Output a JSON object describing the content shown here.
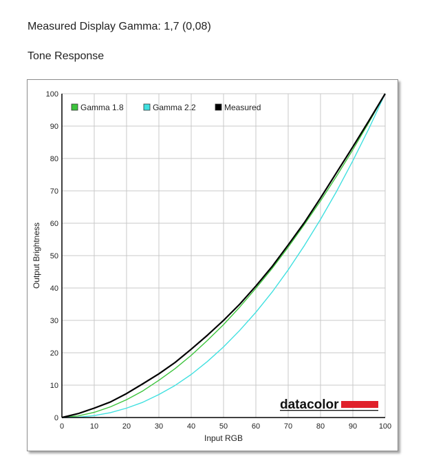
{
  "header": {
    "measured_label": "Measured Display Gamma: 1,7 (0,08)",
    "section_title": "Tone Response"
  },
  "chart_data": {
    "type": "line",
    "title": "Tone Response",
    "xlabel": "Input RGB",
    "ylabel": "Output Brightness",
    "xlim": [
      0,
      100
    ],
    "ylim": [
      0,
      100
    ],
    "xticks": [
      0,
      10,
      20,
      30,
      40,
      50,
      60,
      70,
      80,
      90,
      100
    ],
    "yticks": [
      0,
      10,
      20,
      30,
      40,
      50,
      60,
      70,
      80,
      90,
      100
    ],
    "grid": true,
    "legend_position": "top-left",
    "series": [
      {
        "name": "Gamma 1.8",
        "color": "#3cc43c",
        "x": [
          0,
          5,
          10,
          15,
          20,
          25,
          30,
          35,
          40,
          45,
          50,
          55,
          60,
          65,
          70,
          75,
          80,
          85,
          90,
          95,
          100
        ],
        "y": [
          0,
          0.5,
          1.6,
          3.3,
          5.5,
          8.2,
          11.5,
          15.1,
          19.2,
          23.8,
          28.7,
          34.1,
          39.9,
          46.0,
          52.6,
          59.6,
          66.9,
          74.6,
          82.7,
          91.2,
          100
        ]
      },
      {
        "name": "Gamma 2.2",
        "color": "#40e0e0",
        "x": [
          0,
          5,
          10,
          15,
          20,
          25,
          30,
          35,
          40,
          45,
          50,
          55,
          60,
          65,
          70,
          75,
          80,
          85,
          90,
          95,
          100
        ],
        "y": [
          0,
          0.1,
          0.6,
          1.5,
          2.9,
          4.7,
          7.1,
          9.9,
          13.3,
          17.3,
          21.8,
          26.9,
          32.5,
          38.7,
          45.6,
          53.1,
          61.2,
          69.9,
          79.3,
          89.3,
          100
        ]
      },
      {
        "name": "Measured",
        "color": "#000000",
        "x": [
          0,
          5,
          10,
          15,
          20,
          25,
          30,
          35,
          40,
          45,
          50,
          55,
          60,
          65,
          70,
          75,
          80,
          85,
          90,
          95,
          100
        ],
        "y": [
          0,
          1.2,
          2.9,
          4.8,
          7.4,
          10.4,
          13.5,
          17.0,
          21.1,
          25.4,
          30.0,
          35.0,
          40.6,
          46.6,
          53.3,
          60.2,
          67.8,
          75.7,
          83.6,
          91.7,
          100
        ]
      }
    ]
  },
  "brand": {
    "logo_text": "datacolor",
    "logo_bar_color": "#e0202a"
  }
}
